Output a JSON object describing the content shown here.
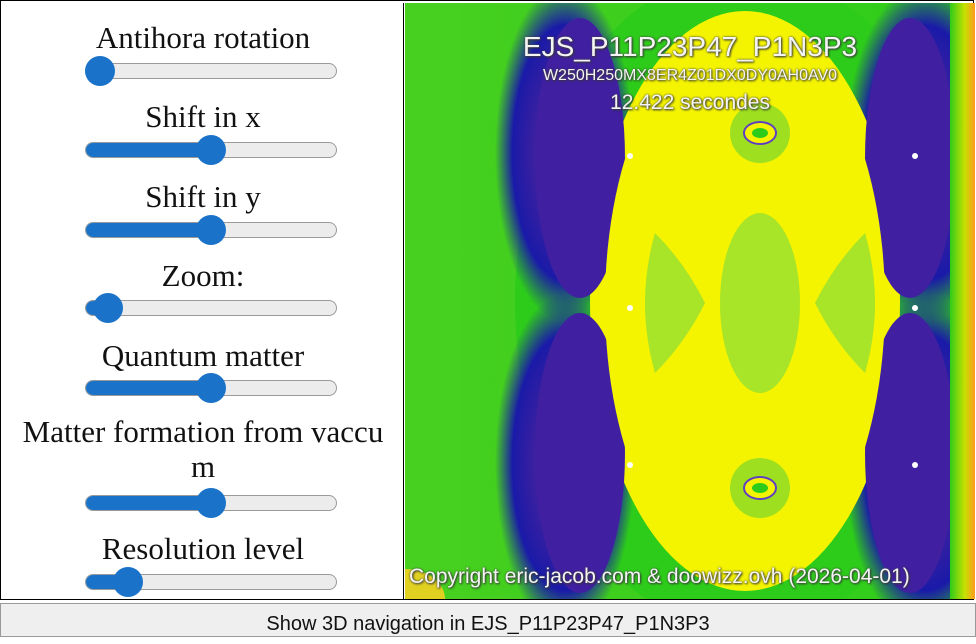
{
  "controls": [
    {
      "label": "Antihora rotation",
      "value": 0.05
    },
    {
      "label": "Shift in x",
      "value": 0.5
    },
    {
      "label": "Shift in y",
      "value": 0.5
    },
    {
      "label": "Zoom:",
      "value": 0.09
    },
    {
      "label": "Quantum matter",
      "value": 0.5
    },
    {
      "label": "Matter formation from vaccu",
      "label2": "m",
      "value": 0.5
    },
    {
      "label": "Resolution level",
      "value": 0.17
    }
  ],
  "image": {
    "title": "EJS_P11P23P47_P1N3P3",
    "params": "W250H250MX8ER4Z01DX0DY0AH0AV0",
    "time": "12.422 secondes",
    "copyright": "Copyright eric-jacob.com & doowizz.ovh (2026-04-01)"
  },
  "colors": {
    "accent": "#1a73c8"
  },
  "bottom_button": "Show 3D navigation in EJS_P11P23P47_P1N3P3"
}
